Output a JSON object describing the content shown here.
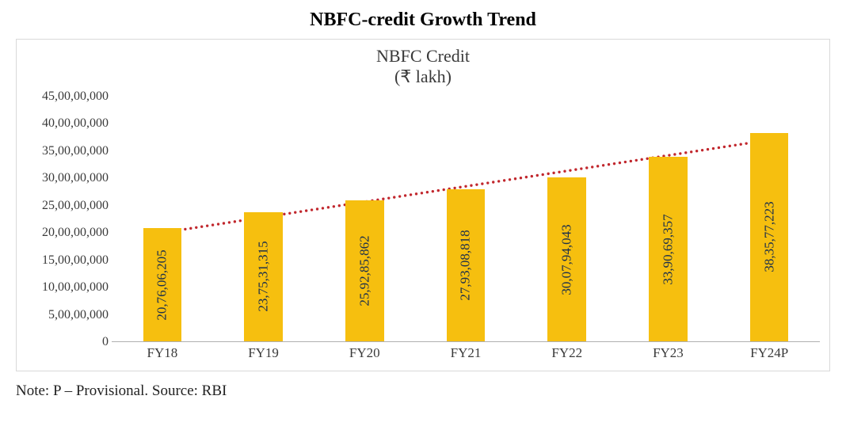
{
  "page_title": "NBFC-credit Growth Trend",
  "chart": {
    "type": "bar",
    "title_line1": "NBFC Credit",
    "title_line2": "(₹ lakh)",
    "title_fontsize": 22,
    "title_color": "#3a3a3a",
    "frame_border_color": "#d9d9d9",
    "axis_line_color": "#b0b0b0",
    "background_color": "#ffffff",
    "y": {
      "min": 0,
      "max": 450000000,
      "ticks": [
        {
          "v": 0,
          "label": "0"
        },
        {
          "v": 50000000,
          "label": "5,00,00,000"
        },
        {
          "v": 100000000,
          "label": "10,00,00,000"
        },
        {
          "v": 150000000,
          "label": "15,00,00,000"
        },
        {
          "v": 200000000,
          "label": "20,00,00,000"
        },
        {
          "v": 250000000,
          "label": "25,00,00,000"
        },
        {
          "v": 300000000,
          "label": "30,00,00,000"
        },
        {
          "v": 350000000,
          "label": "35,00,00,000"
        },
        {
          "v": 400000000,
          "label": "40,00,00,000"
        },
        {
          "v": 450000000,
          "label": "45,00,00,000"
        }
      ],
      "tick_fontsize": 16,
      "tick_color": "#3a3a3a"
    },
    "x": {
      "categories": [
        "FY18",
        "FY19",
        "FY20",
        "FY21",
        "FY22",
        "FY23",
        "FY24P"
      ],
      "tick_fontsize": 17,
      "tick_color": "#3a3a3a"
    },
    "bars": {
      "values": [
        207606205,
        237531315,
        259285862,
        279308818,
        300794043,
        339069357,
        383577223
      ],
      "labels": [
        "20,76,06,205",
        "23,75,31,315",
        "25,92,85,862",
        "27,93,08,818",
        "30,07,94,043",
        "33,90,69,357",
        "38,35,77,223"
      ],
      "fill_color": "#f6bf0f",
      "width_fraction": 0.38,
      "label_rotation_deg": -90,
      "label_fontsize": 17,
      "label_color": "#20324a"
    },
    "trendline": {
      "style": "dotted",
      "color": "#c1272d",
      "width": 2.4,
      "dot_radius": 1.7,
      "dot_spacing": 7,
      "start_value": 200000000,
      "end_value": 370000000
    }
  },
  "footnote": "Note: P – Provisional. Source: RBI"
}
